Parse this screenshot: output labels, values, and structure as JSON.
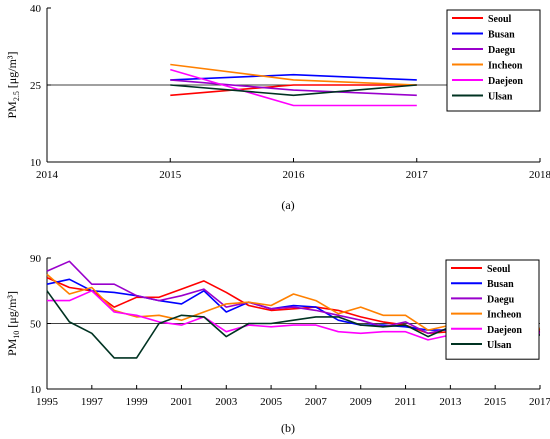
{
  "chart_data": [
    {
      "type": "line",
      "panel_label": "(a)",
      "ylabel_main": "PM",
      "ylabel_sub": "2.5",
      "ylabel_unit": "[μg/m³]",
      "xlim": [
        2014,
        2018
      ],
      "ylim": [
        10,
        40
      ],
      "xticks": [
        "2014",
        "2015",
        "2016",
        "2017",
        "2018"
      ],
      "yticks": [
        "10",
        "25",
        "40"
      ],
      "grid": "horizontal at y-ticks",
      "legend_position": "top-right",
      "x": [
        2015,
        2016,
        2017
      ],
      "series": [
        {
          "name": "Seoul",
          "color": "#ff0000",
          "values": [
            23,
            25,
            25
          ]
        },
        {
          "name": "Busan",
          "color": "#0000ff",
          "values": [
            26,
            27,
            26
          ]
        },
        {
          "name": "Daegu",
          "color": "#9900cc",
          "values": [
            26,
            24,
            23
          ]
        },
        {
          "name": "Incheon",
          "color": "#ff8000",
          "values": [
            29,
            26,
            25
          ]
        },
        {
          "name": "Daejeon",
          "color": "#ff00ff",
          "values": [
            28,
            21,
            21
          ]
        },
        {
          "name": "Ulsan",
          "color": "#003322",
          "values": [
            25,
            23,
            25
          ]
        }
      ]
    },
    {
      "type": "line",
      "panel_label": "(b)",
      "ylabel_main": "PM",
      "ylabel_sub": "10",
      "ylabel_unit": "[μg/m³]",
      "xlim": [
        1995,
        2017
      ],
      "ylim": [
        10,
        90
      ],
      "xticks": [
        "1995",
        "1997",
        "1999",
        "2001",
        "2003",
        "2005",
        "2007",
        "2009",
        "2011",
        "2013",
        "2015",
        "2017"
      ],
      "yticks": [
        "10",
        "50",
        "90"
      ],
      "grid": "horizontal at y-ticks",
      "legend_position": "top-right",
      "x": [
        1995,
        1996,
        1997,
        1998,
        1999,
        2000,
        2001,
        2002,
        2003,
        2004,
        2005,
        2006,
        2007,
        2008,
        2009,
        2010,
        2011,
        2012,
        2013,
        2014,
        2015,
        2016,
        2017
      ],
      "series": [
        {
          "name": "Seoul",
          "color": "#ff0000",
          "values": [
            78,
            72,
            70,
            60,
            66,
            66,
            71,
            76,
            69,
            61,
            58,
            59,
            60,
            58,
            54,
            51,
            49,
            44,
            45,
            46,
            48,
            48,
            46
          ]
        },
        {
          "name": "Busan",
          "color": "#0000ff",
          "values": [
            74,
            77,
            70,
            69,
            67,
            64,
            62,
            70,
            57,
            63,
            59,
            61,
            60,
            52,
            49,
            49,
            48,
            46,
            46,
            46,
            46,
            44,
            44
          ]
        },
        {
          "name": "Daegu",
          "color": "#9900cc",
          "values": [
            82,
            88,
            74,
            74,
            67,
            64,
            67,
            71,
            60,
            63,
            59,
            60,
            58,
            55,
            52,
            48,
            51,
            44,
            47,
            46,
            45,
            46,
            45
          ]
        },
        {
          "name": "Incheon",
          "color": "#ff8000",
          "values": [
            80,
            68,
            72,
            58,
            54,
            55,
            52,
            57,
            62,
            63,
            61,
            68,
            64,
            56,
            60,
            55,
            55,
            46,
            49,
            50,
            53,
            48,
            47
          ]
        },
        {
          "name": "Daejeon",
          "color": "#ff00ff",
          "values": [
            64,
            64,
            70,
            57,
            55,
            51,
            49,
            54,
            45,
            49,
            48,
            49,
            49,
            45,
            44,
            45,
            45,
            40,
            43,
            42,
            47,
            46,
            44
          ]
        },
        {
          "name": "Ulsan",
          "color": "#003322",
          "values": [
            70,
            51,
            44,
            29,
            29,
            50,
            55,
            54,
            42,
            50,
            50,
            52,
            54,
            54,
            49,
            48,
            49,
            42,
            48,
            46,
            46,
            43,
            43
          ]
        }
      ]
    }
  ]
}
